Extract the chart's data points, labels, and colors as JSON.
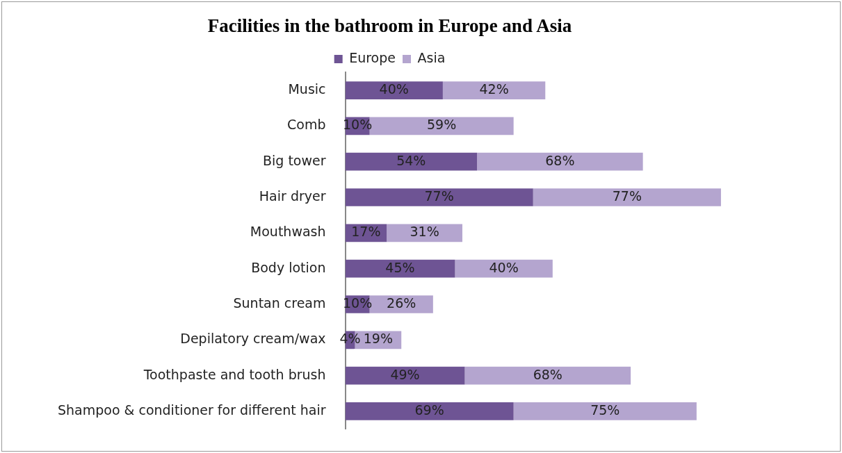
{
  "chart_data": {
    "type": "bar",
    "orientation": "horizontal",
    "stacked": true,
    "title": "Facilities in the bathroom in Europe and Asia",
    "legend": "top",
    "grid": false,
    "tick_labels": "y",
    "categories": [
      "Music",
      "Comb",
      "Big tower",
      "Hair dryer",
      "Mouthwash",
      "Body lotion",
      "Suntan cream",
      "Depilatory cream/wax",
      "Toothpaste and tooth brush",
      "Shampoo & conditioner for different hair"
    ],
    "series": [
      {
        "name": "Europe",
        "color": "#6e5494",
        "values": [
          40,
          10,
          54,
          77,
          17,
          45,
          10,
          4,
          49,
          69
        ],
        "value_labels": [
          "40%",
          "10%",
          "54%",
          "77%",
          "17%",
          "45%",
          "10%",
          "4%",
          "49%",
          "69%"
        ]
      },
      {
        "name": "Asia",
        "color": "#b4a5cf",
        "values": [
          42,
          59,
          68,
          77,
          31,
          40,
          26,
          19,
          68,
          75
        ],
        "value_labels": [
          "42%",
          "59%",
          "68%",
          "77%",
          "31%",
          "40%",
          "26%",
          "19%",
          "68%",
          "75%"
        ]
      }
    ]
  }
}
